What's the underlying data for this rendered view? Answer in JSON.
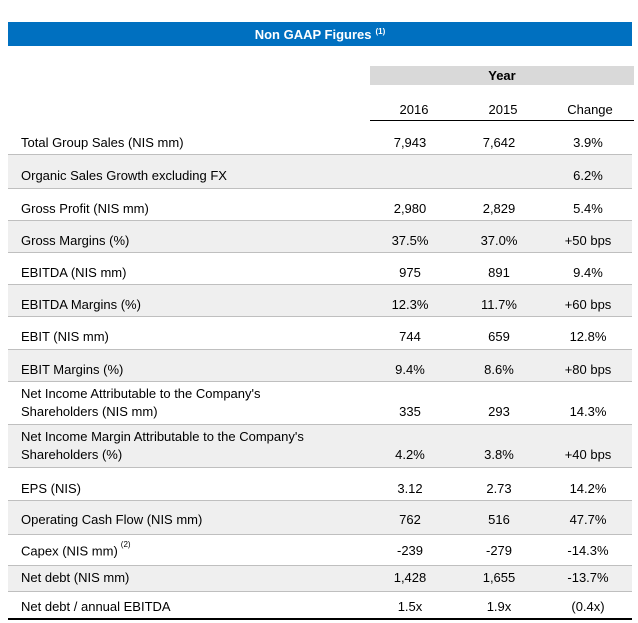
{
  "banner": {
    "title": "Non GAAP Figures",
    "note": "(1)"
  },
  "header": {
    "group": "Year",
    "col2016": "2016",
    "col2015": "2015",
    "colChange": "Change"
  },
  "rows": [
    {
      "label": "Total Group Sales (NIS mm)",
      "label2": "",
      "note": "",
      "v2016": "7,943",
      "v2015": "7,642",
      "change": "3.9%"
    },
    {
      "label": "Organic Sales Growth excluding FX",
      "label2": "",
      "note": "",
      "v2016": "",
      "v2015": "",
      "change": "6.2%"
    },
    {
      "label": "Gross Profit (NIS mm)",
      "label2": "",
      "note": "",
      "v2016": "2,980",
      "v2015": "2,829",
      "change": "5.4%"
    },
    {
      "label": "Gross Margins (%)",
      "label2": "",
      "note": "",
      "v2016": "37.5%",
      "v2015": "37.0%",
      "change": "+50 bps"
    },
    {
      "label": "EBITDA (NIS mm)",
      "label2": "",
      "note": "",
      "v2016": "975",
      "v2015": "891",
      "change": "9.4%"
    },
    {
      "label": "EBITDA Margins (%)",
      "label2": "",
      "note": "",
      "v2016": "12.3%",
      "v2015": "11.7%",
      "change": "+60 bps"
    },
    {
      "label": "EBIT (NIS mm)",
      "label2": "",
      "note": "",
      "v2016": "744",
      "v2015": "659",
      "change": "12.8%"
    },
    {
      "label": "EBIT Margins (%)",
      "label2": "",
      "note": "",
      "v2016": "9.4%",
      "v2015": "8.6%",
      "change": "+80 bps"
    },
    {
      "label": "Net Income Attributable to the Company's",
      "label2": "Shareholders (NIS mm)",
      "note": "",
      "v2016": "335",
      "v2015": "293",
      "change": "14.3%"
    },
    {
      "label": "Net Income Margin Attributable to the Company's",
      "label2": "Shareholders (%)",
      "note": "",
      "v2016": "4.2%",
      "v2015": "3.8%",
      "change": "+40 bps"
    },
    {
      "label": "EPS (NIS)",
      "label2": "",
      "note": "",
      "v2016": "3.12",
      "v2015": "2.73",
      "change": "14.2%"
    },
    {
      "label": "Operating Cash Flow (NIS mm)",
      "label2": "",
      "note": "",
      "v2016": "762",
      "v2015": "516",
      "change": "47.7%"
    },
    {
      "label": "Capex (NIS mm)",
      "label2": "",
      "note": "(2)",
      "v2016": "-239",
      "v2015": "-279",
      "change": "-14.3%"
    },
    {
      "label": "Net debt (NIS mm)",
      "label2": "",
      "note": "",
      "v2016": "1,428",
      "v2015": "1,655",
      "change": "-13.7%"
    },
    {
      "label": "Net debt / annual EBITDA",
      "label2": "",
      "note": "",
      "v2016": "1.5x",
      "v2015": "1.9x",
      "change": "(0.4x)"
    }
  ]
}
